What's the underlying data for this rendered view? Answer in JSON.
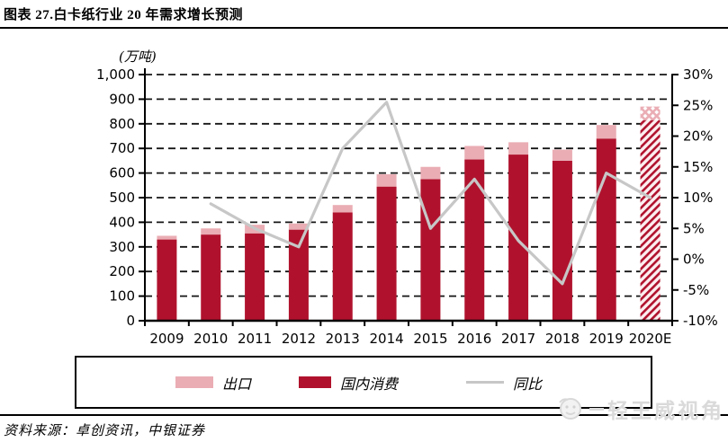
{
  "header": {
    "title": "图表 27.白卡纸行业 20 年需求增长预测"
  },
  "chart_data": {
    "type": "bar",
    "subtype": "stacked-bar-with-line-combo",
    "title": "图表 27.白卡纸行业 20 年需求增长预测",
    "unit_label": "(万吨)",
    "categories": [
      "2009",
      "2010",
      "2011",
      "2012",
      "2013",
      "2014",
      "2015",
      "2016",
      "2017",
      "2018",
      "2019",
      "2020E"
    ],
    "series": [
      {
        "name": "出口",
        "type": "bar",
        "stack_role": "top",
        "color": "#eaadb4",
        "values": [
          15,
          25,
          35,
          25,
          30,
          50,
          50,
          55,
          50,
          45,
          55,
          55
        ]
      },
      {
        "name": "国内消费",
        "type": "bar",
        "stack_role": "base",
        "color": "#b0122d",
        "values": [
          330,
          350,
          355,
          370,
          440,
          545,
          575,
          655,
          675,
          650,
          740,
          815
        ]
      },
      {
        "name": "同比",
        "type": "line",
        "axis": "right",
        "color": "#c7c7c7",
        "values": [
          null,
          9,
          5,
          2,
          18,
          25.5,
          5,
          13,
          3,
          -4,
          14,
          10
        ]
      }
    ],
    "stacked_totals": [
      345,
      375,
      390,
      395,
      470,
      595,
      625,
      710,
      725,
      695,
      795,
      870
    ],
    "left_axis": {
      "title": "(万吨)",
      "min": 0,
      "max": 1000,
      "step": 100,
      "tick_labels": [
        "0",
        "100",
        "200",
        "300",
        "400",
        "500",
        "600",
        "700",
        "800",
        "900",
        "1,000"
      ]
    },
    "right_axis": {
      "min": -10,
      "max": 30,
      "step": 5,
      "tick_labels": [
        "-10%",
        "-5%",
        "0%",
        "5%",
        "10%",
        "15%",
        "20%",
        "25%",
        "30%"
      ]
    },
    "forecast_index": 11,
    "forecast_style": "hatched",
    "grid": "horizontal dashed",
    "legend_position": "bottom boxed"
  },
  "footer": {
    "source": "资料来源：卓创资讯，中银证券",
    "watermark": "轻王威视角"
  }
}
